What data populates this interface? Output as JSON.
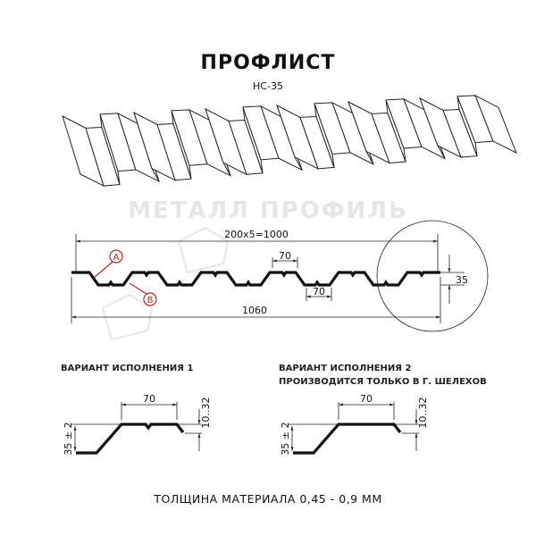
{
  "title": "ПРОФЛИСТ",
  "model": "НС-35",
  "watermark": "МЕТАЛЛ ПРОФИЛЬ",
  "profile": {
    "dim_top": "200x5=1000",
    "dim_bottom": "1060",
    "dim_top_width": "70",
    "dim_bottom_width": "70",
    "dim_height": "35",
    "marker_a": "A",
    "marker_b": "B"
  },
  "variants": [
    {
      "caption": "ВАРИАНТ ИСПОЛНЕНИЯ 1",
      "caption2": "",
      "width": "70",
      "height": "35 ± 2",
      "step": "10..32",
      "notch": true
    },
    {
      "caption": "ВАРИАНТ ИСПОЛНЕНИЯ 2",
      "caption2": "ПРОИЗВОДИТСЯ ТОЛЬКО В Г. ШЕЛЕХОВ",
      "width": "70",
      "height": "35 ± 2",
      "step": "10..32",
      "notch": false
    }
  ],
  "footer": "ТОЛЩИНА МАТЕРИАЛА 0,45 - 0,9 ММ",
  "colors": {
    "marker": "#b52a20",
    "line": "#111111",
    "watermark": "#e6e6e6"
  }
}
